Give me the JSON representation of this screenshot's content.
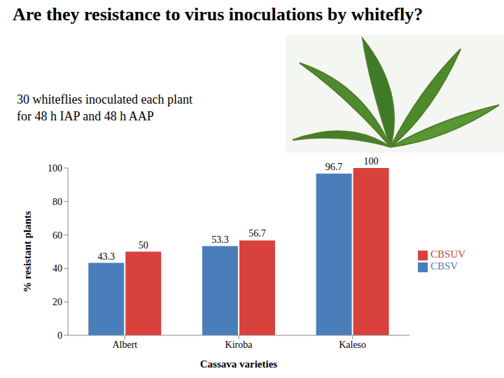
{
  "title": "Are they resistance to virus inoculations by whitefly?",
  "subtitle": "30 whiteflies inoculated each plant for 48 h IAP and 48 h AAP",
  "chart_data": {
    "type": "bar",
    "categories": [
      "Albert",
      "Kiroba",
      "Kaleso"
    ],
    "series": [
      {
        "name": "CBSV",
        "color": "#4a7ebb",
        "values": [
          43.3,
          53.3,
          96.7
        ]
      },
      {
        "name": "CBSUV",
        "color": "#d9413c",
        "values": [
          50,
          56.7,
          100
        ]
      }
    ],
    "x_label": "Cassava varieties",
    "y_label": "% resistant plants",
    "ylim": [
      0,
      100
    ],
    "yticks": [
      0,
      20,
      40,
      60,
      80,
      100
    ],
    "grid": false,
    "legend": "right",
    "data_labels": true
  }
}
